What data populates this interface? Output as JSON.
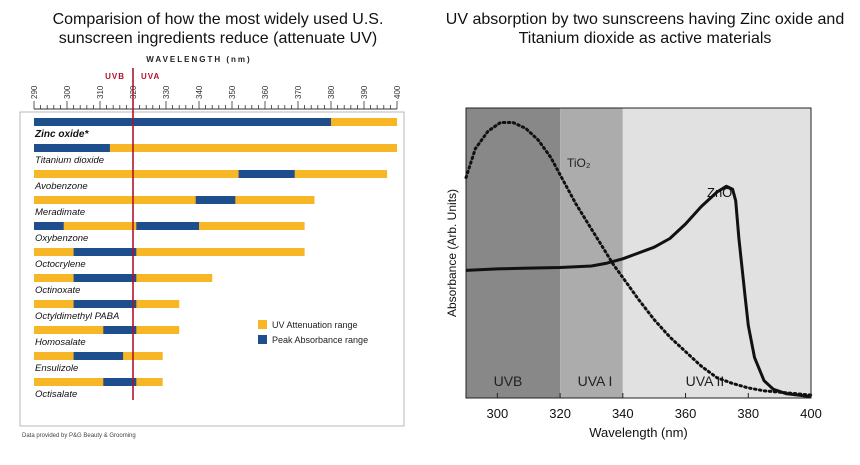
{
  "left_title": "Comparision of how the most widely used U.S. sunscreen ingredients reduce (attenuate UV)",
  "right_title": "UV absorption by two sunscreens having Zinc oxide and Titanium dioxide as active materials",
  "chart_data": [
    {
      "type": "bar",
      "orientation": "horizontal-range",
      "axis_title": "WAVELENGTH (nm)",
      "band_labels": [
        "UVB",
        "UVA"
      ],
      "x_ticks": [
        290,
        300,
        310,
        320,
        330,
        340,
        350,
        360,
        370,
        380,
        390,
        400
      ],
      "xlim": [
        290,
        400
      ],
      "boundary_line": 320,
      "legend": {
        "attenuation": "UV Attenuation range",
        "peak": "Peak Absorbance range",
        "placement": "lower-right"
      },
      "footnote": "Data provided by P&G Beauty & Grooming",
      "colors": {
        "attenuation": "#F7B626",
        "peak": "#1E4F8C",
        "boundary": "#B0122E"
      },
      "ingredients": [
        {
          "name": "Zinc oxide*",
          "bold": true,
          "attenuation": [
            290,
            400
          ],
          "peak": [
            [
              290,
              380
            ]
          ]
        },
        {
          "name": "Titanium dioxide",
          "attenuation": [
            290,
            400
          ],
          "peak": [
            [
              290,
              313
            ]
          ]
        },
        {
          "name": "Avobenzone",
          "attenuation": [
            290,
            397
          ],
          "peak": [
            [
              352,
              369
            ]
          ]
        },
        {
          "name": "Meradimate",
          "attenuation": [
            290,
            375
          ],
          "peak": [
            [
              339,
              351
            ]
          ]
        },
        {
          "name": "Oxybenzone",
          "attenuation": [
            290,
            372
          ],
          "peak": [
            [
              290,
              299
            ],
            [
              321,
              340
            ]
          ]
        },
        {
          "name": "Octocrylene",
          "attenuation": [
            290,
            372
          ],
          "peak": [
            [
              302,
              321
            ]
          ]
        },
        {
          "name": "Octinoxate",
          "attenuation": [
            290,
            344
          ],
          "peak": [
            [
              302,
              321
            ]
          ]
        },
        {
          "name": "Octyldimethyl PABA",
          "attenuation": [
            290,
            334
          ],
          "peak": [
            [
              302,
              321
            ]
          ]
        },
        {
          "name": "Homosalate",
          "attenuation": [
            290,
            334
          ],
          "peak": [
            [
              311,
              321
            ]
          ]
        },
        {
          "name": "Ensulizole",
          "attenuation": [
            290,
            329
          ],
          "peak": [
            [
              302,
              317
            ]
          ]
        },
        {
          "name": "Octisalate",
          "attenuation": [
            290,
            329
          ],
          "peak": [
            [
              311,
              321
            ]
          ]
        }
      ]
    },
    {
      "type": "line",
      "xlabel": "Wavelength (nm)",
      "ylabel": "Absorbance (Arb. Units)",
      "xlim": [
        290,
        400
      ],
      "x_ticks": [
        300,
        320,
        340,
        360,
        380,
        400
      ],
      "regions": [
        {
          "label": "UVB",
          "range": [
            290,
            320
          ],
          "color": "#888888"
        },
        {
          "label": "UVA I",
          "range": [
            320,
            340
          ],
          "color": "#ACACAC"
        },
        {
          "label": "UVA II",
          "range": [
            340,
            400
          ],
          "color": "#E1E1E1"
        }
      ],
      "series": [
        {
          "name": "TiO₂",
          "style": "dotted",
          "x": [
            290,
            293,
            297,
            301,
            305,
            309,
            313,
            317,
            321,
            325,
            329,
            333,
            337,
            341,
            345,
            350,
            355,
            360,
            365,
            370,
            375,
            380,
            385,
            390,
            395,
            400
          ],
          "y": [
            0.76,
            0.86,
            0.92,
            0.95,
            0.95,
            0.93,
            0.89,
            0.83,
            0.75,
            0.67,
            0.6,
            0.53,
            0.46,
            0.4,
            0.34,
            0.27,
            0.21,
            0.16,
            0.11,
            0.07,
            0.05,
            0.035,
            0.025,
            0.02,
            0.015,
            0.01
          ]
        },
        {
          "name": "ZnO",
          "style": "solid",
          "x": [
            290,
            300,
            310,
            320,
            330,
            335,
            340,
            345,
            350,
            355,
            360,
            365,
            370,
            373,
            375,
            376,
            377,
            378,
            379,
            380,
            382,
            385,
            388,
            392,
            396,
            400
          ],
          "y": [
            0.44,
            0.445,
            0.448,
            0.45,
            0.455,
            0.465,
            0.48,
            0.5,
            0.52,
            0.55,
            0.6,
            0.66,
            0.71,
            0.73,
            0.72,
            0.68,
            0.55,
            0.45,
            0.35,
            0.25,
            0.14,
            0.06,
            0.03,
            0.015,
            0.01,
            0.005
          ]
        }
      ]
    }
  ]
}
